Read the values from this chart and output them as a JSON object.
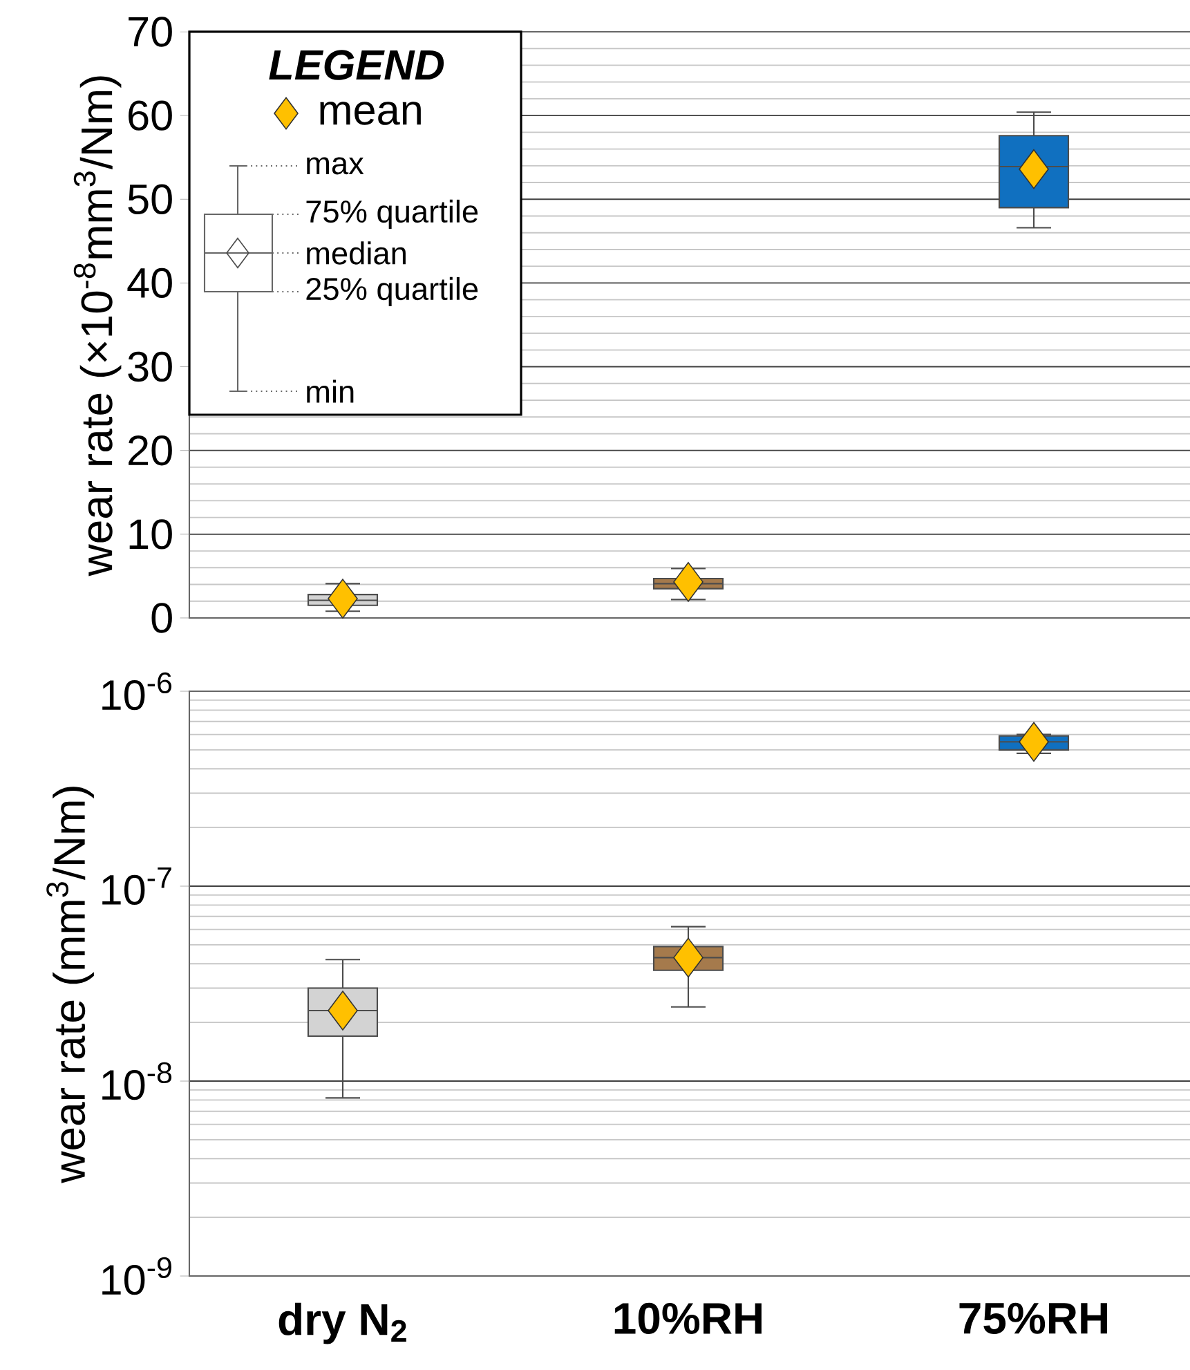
{
  "chart_data": [
    {
      "type": "box",
      "categories": [
        "dry N$_{2}$",
        "10%RH",
        "75%RH"
      ],
      "tick_labels": "y",
      "ylabel": "wear rate (×10$^{-8}$mm$^{3}$/Nm)",
      "ylim": [
        0,
        70
      ],
      "yticks": [
        0,
        10,
        20,
        30,
        40,
        50,
        60,
        70
      ],
      "grid": "y",
      "legend": "top left",
      "legend_title": "LEGEND",
      "marker": "diamond",
      "annotations": [
        "max",
        "75% quartile",
        "median",
        "25% quartile",
        "min"
      ],
      "series": [
        {
          "type": "box",
          "colors": [
            "#d3d3d3",
            "#a57a4c",
            "#1070c0"
          ],
          "boxes": [
            {
              "low": 0.8,
              "q1": 1.5,
              "median": 2.1,
              "q3": 2.8,
              "high": 4.1
            },
            {
              "low": 2.2,
              "q1": 3.5,
              "median": 4.1,
              "q3": 4.7,
              "high": 5.9
            },
            {
              "low": 46.6,
              "q1": 49.0,
              "median": 53.9,
              "q3": 57.6,
              "high": 60.4
            }
          ]
        },
        {
          "type": "scatter",
          "name": "mean",
          "color": "#ffc000",
          "x": [
            "dry N$_{2}$",
            "10%RH",
            "75%RH"
          ],
          "values": [
            2.3,
            4.3,
            53.6
          ]
        }
      ]
    },
    {
      "type": "box",
      "categories": [
        "dry N$_{2}$",
        "10%RH",
        "75%RH"
      ],
      "ylabel": "wear rate (mm$^{3}$/Nm)",
      "log": "y",
      "ylim": [
        1e-09,
        1e-06
      ],
      "yticks": [
        {
          "value": 1e-09,
          "label": "10$^{-9}$"
        },
        {
          "value": 1e-08,
          "label": "10$^{-8}$"
        },
        {
          "value": 1e-07,
          "label": "10$^{-7}$"
        },
        {
          "value": 1e-06,
          "label": "10$^{-6}$"
        }
      ],
      "grid": "y",
      "marker": "diamond",
      "series": [
        {
          "type": "box",
          "colors": [
            "#d3d3d3",
            "#a57a4c",
            "#1070c0"
          ],
          "boxes": [
            {
              "low": 8.2e-09,
              "q1": 1.7e-08,
              "median": 2.3e-08,
              "q3": 3e-08,
              "high": 4.2e-08
            },
            {
              "low": 2.4e-08,
              "q1": 3.7e-08,
              "median": 4.3e-08,
              "q3": 4.9e-08,
              "high": 6.2e-08
            },
            {
              "low": 4.8e-07,
              "q1": 5e-07,
              "median": 5.5e-07,
              "q3": 5.9e-07,
              "high": 6e-07
            }
          ]
        },
        {
          "type": "scatter",
          "color": "#ffc000",
          "x": [
            "dry N$_{2}$",
            "10%RH",
            "75%RH"
          ],
          "values": [
            2.3e-08,
            4.3e-08,
            5.5e-07
          ]
        }
      ]
    }
  ]
}
